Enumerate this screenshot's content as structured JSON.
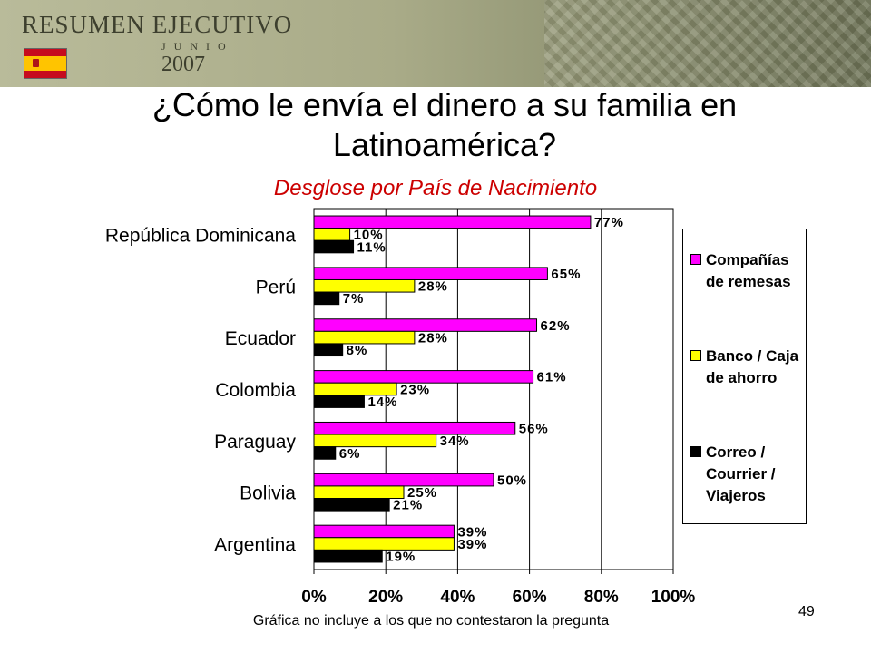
{
  "banner": {
    "title": "RESUMEN EJECUTIVO",
    "month": "JUNIO",
    "year": "2007",
    "flag_colors": [
      "#c60b1e",
      "#ffc400"
    ]
  },
  "slide": {
    "title": "¿Cómo le envía el dinero a su familia en Latinoamérica?",
    "subtitle": "Desglose por País de Nacimiento",
    "footnote": "Gráfica no incluye a los que no contestaron la pregunta",
    "page_number": "49"
  },
  "chart_data": {
    "type": "bar",
    "orientation": "horizontal",
    "categories": [
      "República Dominicana",
      "Perú",
      "Ecuador",
      "Colombia",
      "Paraguay",
      "Bolivia",
      "Argentina"
    ],
    "series": [
      {
        "name": "Compañías de remesas",
        "color": "#ff00ff",
        "values": [
          77,
          65,
          62,
          61,
          56,
          50,
          39
        ],
        "labels": [
          "77%",
          "65%",
          "62%",
          "61%",
          "56%",
          "50%",
          "39%"
        ]
      },
      {
        "name": "Banco / Caja de ahorro",
        "color": "#ffff00",
        "values": [
          10,
          28,
          28,
          23,
          34,
          25,
          39
        ],
        "labels": [
          "10%",
          "28%",
          "28%",
          "23%",
          "34%",
          "25%",
          "39%"
        ]
      },
      {
        "name": "Correo / Courrier / Viajeros",
        "color": "#000000",
        "values": [
          11,
          7,
          8,
          14,
          6,
          21,
          19
        ],
        "labels": [
          "11%",
          "7%",
          "8%",
          "14%",
          "6%",
          "21%",
          "19%"
        ]
      }
    ],
    "xlim": [
      0,
      100
    ],
    "xticks": [
      "0%",
      "20%",
      "40%",
      "60%",
      "80%",
      "100%"
    ],
    "grid": true,
    "legend": "right"
  }
}
